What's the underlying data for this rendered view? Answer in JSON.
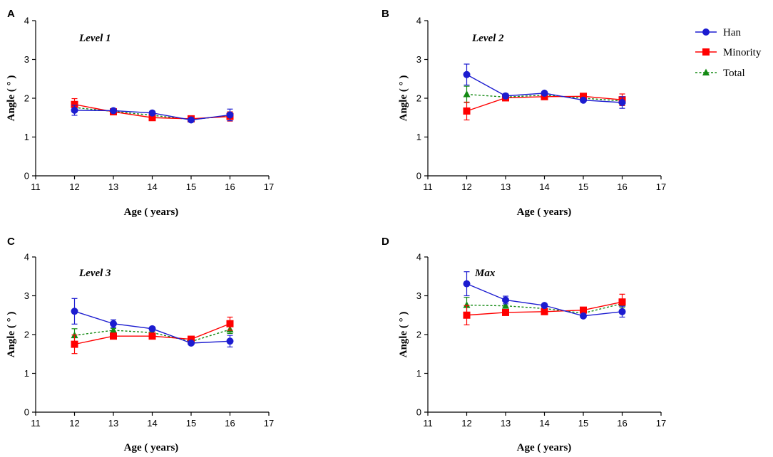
{
  "chart_data": [
    {
      "type": "line",
      "panel": "A",
      "title": "Level 1",
      "xlabel": "Age ( years)",
      "ylabel": "Angle ( ° )",
      "xlim": [
        11,
        17
      ],
      "ylim": [
        0,
        4
      ],
      "xticks": [
        11,
        12,
        13,
        14,
        15,
        16,
        17
      ],
      "yticks": [
        0,
        1,
        2,
        3,
        4
      ],
      "x": [
        12,
        13,
        14,
        15,
        16
      ],
      "series": [
        {
          "name": "Han",
          "values": [
            1.69,
            1.68,
            1.62,
            1.44,
            1.57
          ],
          "err": [
            0.13,
            0.03,
            0.03,
            0.03,
            0.15
          ]
        },
        {
          "name": "Minority",
          "values": [
            1.84,
            1.65,
            1.5,
            1.47,
            1.53
          ],
          "err": [
            0.15,
            0.04,
            0.04,
            0.04,
            0.12
          ]
        },
        {
          "name": "Total",
          "values": [
            1.76,
            1.66,
            1.56,
            1.45,
            1.55
          ],
          "err": [
            0.07,
            0.02,
            0.02,
            0.02,
            0.08
          ]
        }
      ]
    },
    {
      "type": "line",
      "panel": "B",
      "title": "Level 2",
      "xlabel": "Age ( years)",
      "ylabel": "Angle ( ° )",
      "xlim": [
        11,
        17
      ],
      "ylim": [
        0,
        4
      ],
      "xticks": [
        11,
        12,
        13,
        14,
        15,
        16,
        17
      ],
      "yticks": [
        0,
        1,
        2,
        3,
        4
      ],
      "x": [
        12,
        13,
        14,
        15,
        16
      ],
      "series": [
        {
          "name": "Han",
          "values": [
            2.61,
            2.06,
            2.13,
            1.95,
            1.89
          ],
          "err": [
            0.27,
            0.06,
            0.03,
            0.03,
            0.15
          ]
        },
        {
          "name": "Minority",
          "values": [
            1.67,
            2.01,
            2.04,
            2.05,
            1.96
          ],
          "err": [
            0.23,
            0.05,
            0.04,
            0.03,
            0.15
          ]
        },
        {
          "name": "Total",
          "values": [
            2.1,
            2.03,
            2.08,
            2.0,
            1.93
          ],
          "err": [
            0.21,
            0.04,
            0.03,
            0.02,
            0.1
          ]
        }
      ]
    },
    {
      "type": "line",
      "panel": "C",
      "title": "Level 3",
      "xlabel": "Age ( years)",
      "ylabel": "Angle ( ° )",
      "xlim": [
        11,
        17
      ],
      "ylim": [
        0,
        4
      ],
      "xticks": [
        11,
        12,
        13,
        14,
        15,
        16,
        17
      ],
      "yticks": [
        0,
        1,
        2,
        3,
        4
      ],
      "x": [
        12,
        13,
        14,
        15,
        16
      ],
      "series": [
        {
          "name": "Han",
          "values": [
            2.6,
            2.28,
            2.15,
            1.78,
            1.83
          ],
          "err": [
            0.33,
            0.1,
            0.04,
            0.04,
            0.15
          ]
        },
        {
          "name": "Minority",
          "values": [
            1.75,
            1.96,
            1.96,
            1.88,
            2.28
          ],
          "err": [
            0.24,
            0.05,
            0.04,
            0.04,
            0.17
          ]
        },
        {
          "name": "Total",
          "values": [
            1.98,
            2.11,
            2.05,
            1.82,
            2.13
          ],
          "err": [
            0.17,
            0.05,
            0.03,
            0.03,
            0.1
          ]
        }
      ]
    },
    {
      "type": "line",
      "panel": "D",
      "title": "Max",
      "xlabel": "Age ( years)",
      "ylabel": "Angle ( ° )",
      "xlim": [
        11,
        17
      ],
      "ylim": [
        0,
        4
      ],
      "xticks": [
        11,
        12,
        13,
        14,
        15,
        16,
        17
      ],
      "yticks": [
        0,
        1,
        2,
        3,
        4
      ],
      "x": [
        12,
        13,
        14,
        15,
        16
      ],
      "series": [
        {
          "name": "Han",
          "values": [
            3.31,
            2.89,
            2.75,
            2.48,
            2.59
          ],
          "err": [
            0.31,
            0.1,
            0.04,
            0.04,
            0.14
          ]
        },
        {
          "name": "Minority",
          "values": [
            2.5,
            2.57,
            2.59,
            2.63,
            2.84
          ],
          "err": [
            0.25,
            0.05,
            0.04,
            0.04,
            0.2
          ]
        },
        {
          "name": "Total",
          "values": [
            2.76,
            2.74,
            2.67,
            2.55,
            2.8
          ],
          "err": [
            0.2,
            0.05,
            0.03,
            0.03,
            0.11
          ]
        }
      ]
    }
  ],
  "legend": {
    "items": [
      {
        "name": "Han",
        "color": "#1c1cd0",
        "marker": "circle",
        "dash": "solid"
      },
      {
        "name": "Minority",
        "color": "#ff0000",
        "marker": "square",
        "dash": "solid"
      },
      {
        "name": "Total",
        "color": "#138a13",
        "marker": "triangle",
        "dash": "dashed"
      }
    ]
  }
}
